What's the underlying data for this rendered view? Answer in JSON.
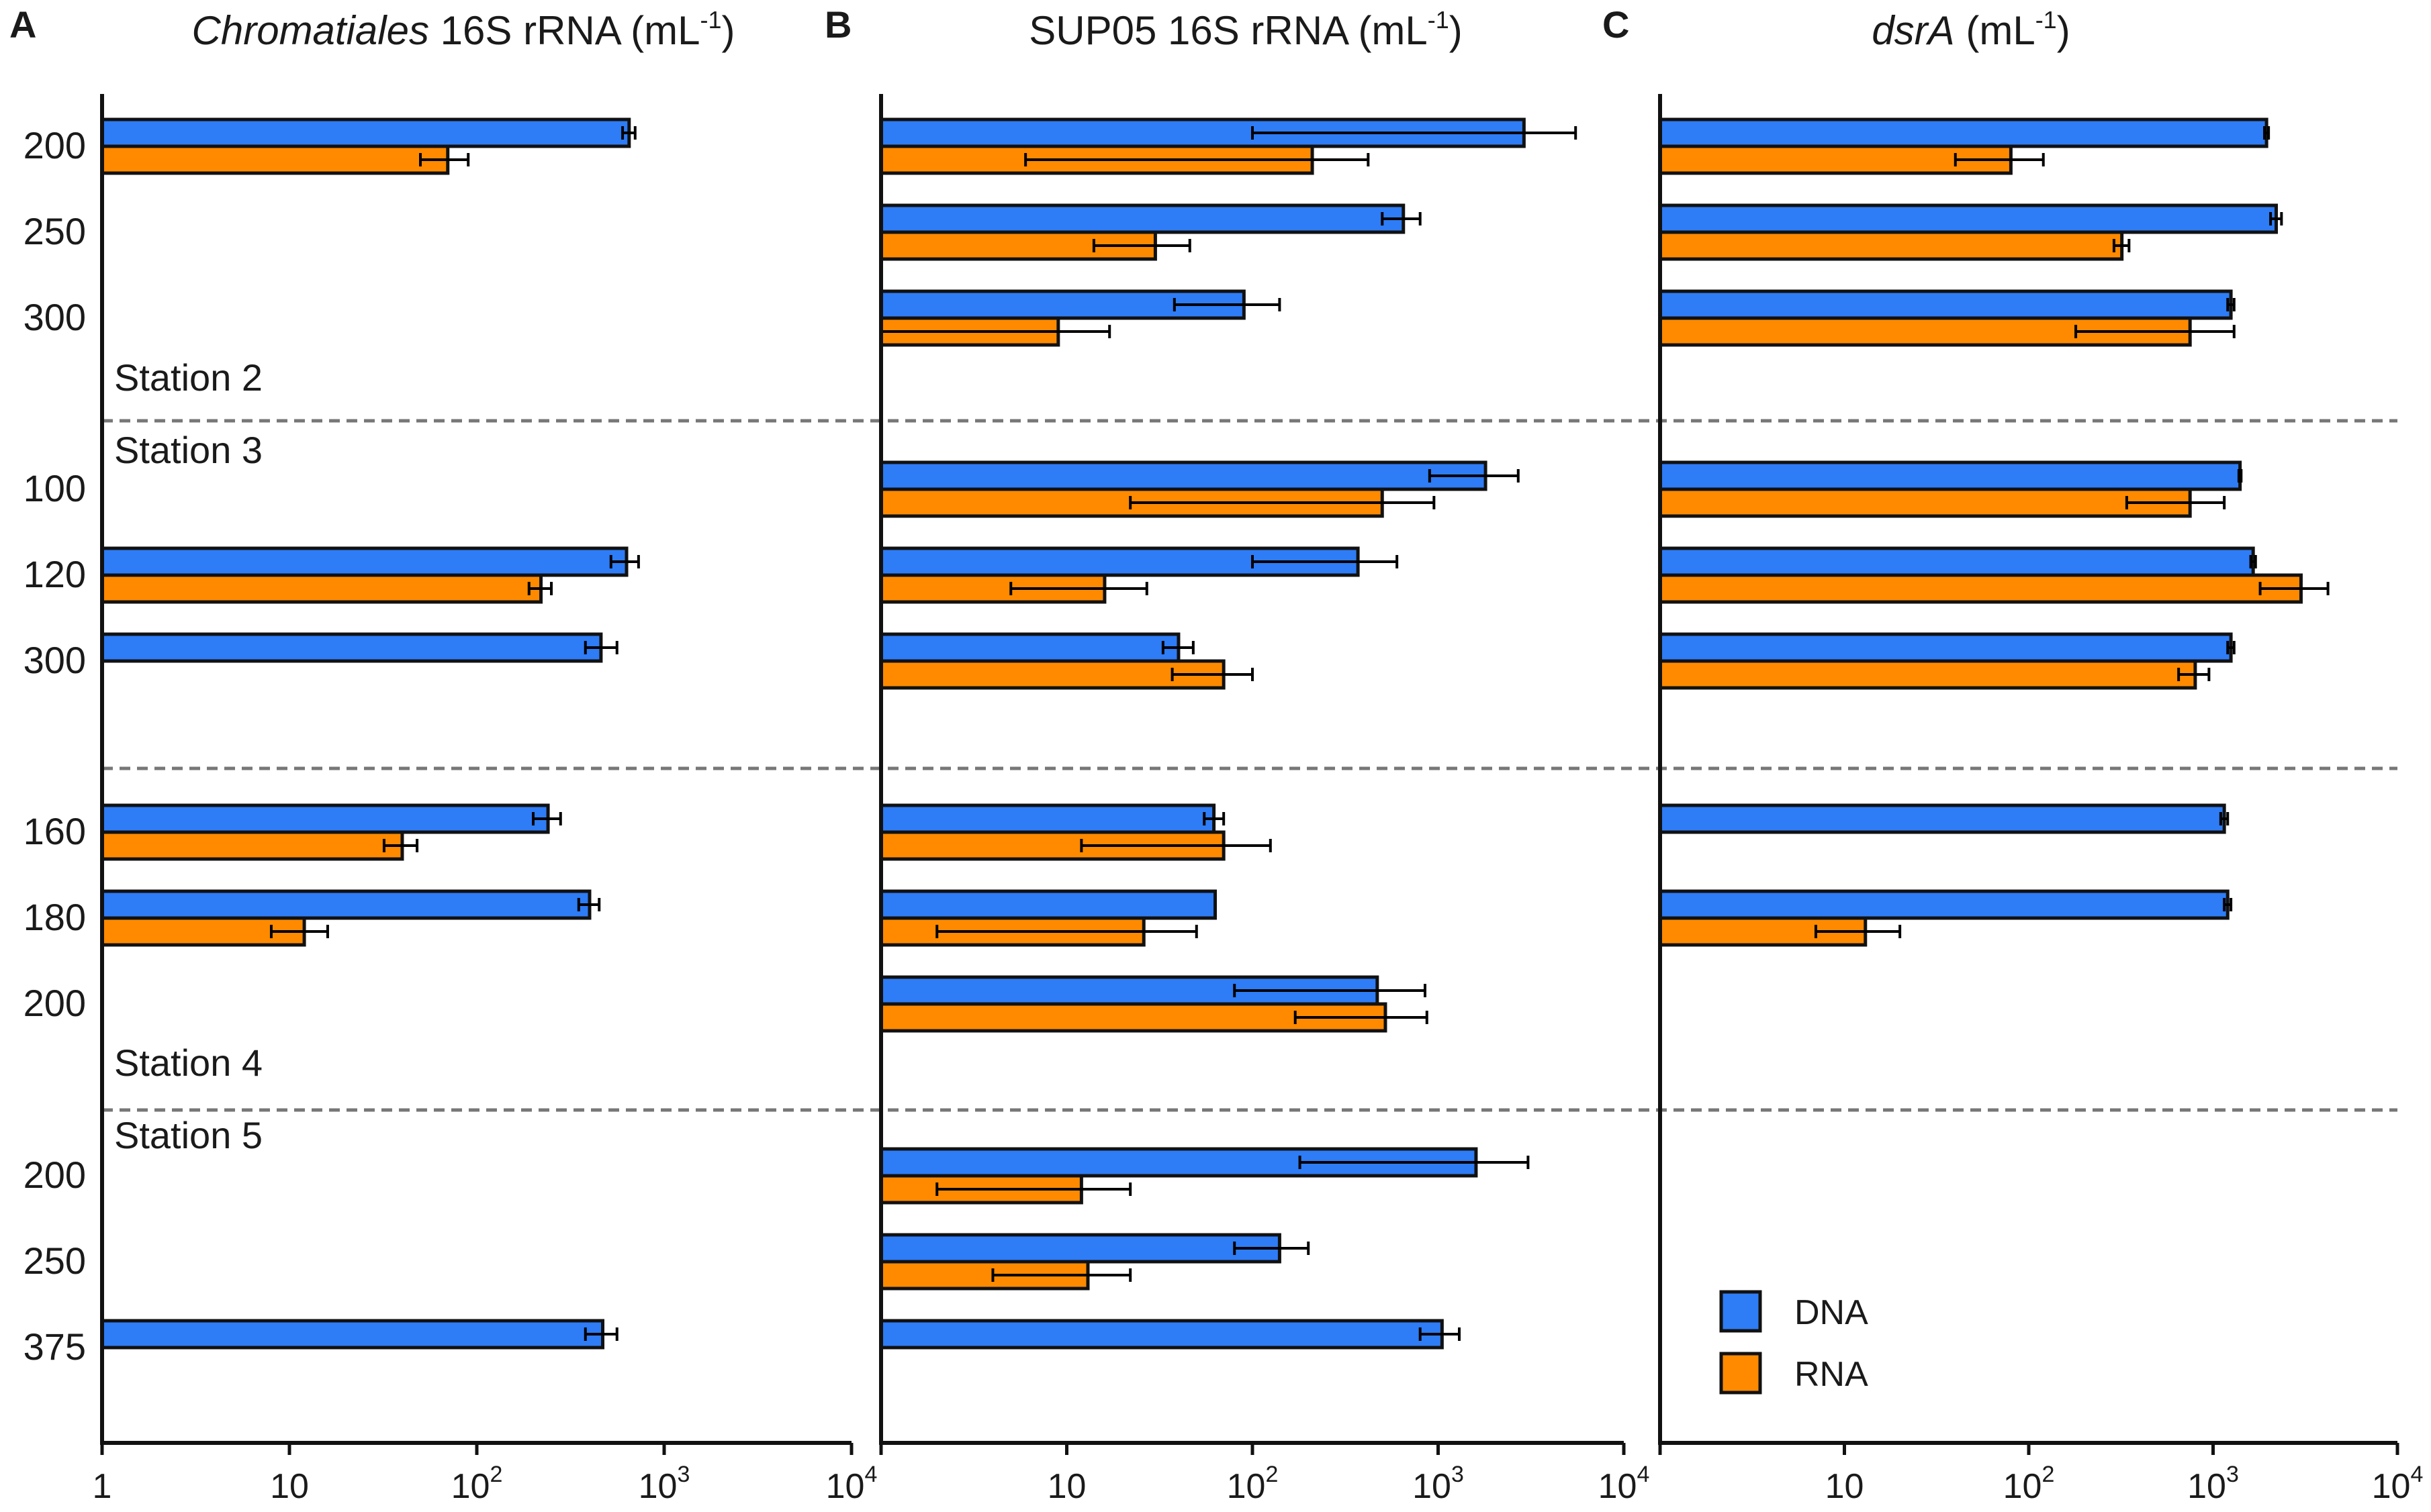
{
  "chart_data": {
    "type": "bar",
    "orientation": "horizontal",
    "xscale": "log",
    "xlim": [
      1,
      10000
    ],
    "x_tick_labels": [
      {
        "v": 1,
        "base": "1",
        "exp": ""
      },
      {
        "v": 10,
        "base": "10",
        "exp": ""
      },
      {
        "v": 100,
        "base": "10",
        "exp": "2"
      },
      {
        "v": 1000,
        "base": "10",
        "exp": "3"
      },
      {
        "v": 10000,
        "base": "10",
        "exp": "4"
      }
    ],
    "colors": {
      "DNA": "#2e7cf6",
      "RNA": "#ff8a00",
      "axis": "#111111",
      "divider": "#777777"
    },
    "legend": {
      "position": "bottom-right",
      "entries": [
        {
          "key": "DNA",
          "label": "DNA"
        },
        {
          "key": "RNA",
          "label": "RNA"
        }
      ]
    },
    "station_labels": [
      "Station 2",
      "Station 3",
      "Station 4",
      "Station 5"
    ],
    "groups": [
      {
        "station": "Station 2",
        "depth": "200"
      },
      {
        "station": "Station 2",
        "depth": "250"
      },
      {
        "station": "Station 2",
        "depth": "300"
      },
      {
        "station": "Station 3",
        "depth": "100"
      },
      {
        "station": "Station 3",
        "depth": "120"
      },
      {
        "station": "Station 3",
        "depth": "300"
      },
      {
        "station": "Station 4",
        "depth": "160"
      },
      {
        "station": "Station 4",
        "depth": "180"
      },
      {
        "station": "Station 4",
        "depth": "200"
      },
      {
        "station": "Station 5",
        "depth": "200"
      },
      {
        "station": "Station 5",
        "depth": "250"
      },
      {
        "station": "Station 5",
        "depth": "375"
      }
    ],
    "panels": [
      {
        "letter": "A",
        "title_italic": "Chromatiales",
        "title_rest": " 16S rRNA (mL",
        "title_sup": "-1",
        "title_end": ")",
        "bars": [
          {
            "group": 0,
            "series": "DNA",
            "value": 650,
            "err": [
              600,
              700
            ]
          },
          {
            "group": 0,
            "series": "RNA",
            "value": 70,
            "err": [
              50,
              90
            ]
          },
          {
            "group": 4,
            "series": "DNA",
            "value": 630,
            "err": [
              520,
              730
            ]
          },
          {
            "group": 4,
            "series": "RNA",
            "value": 220,
            "err": [
              190,
              250
            ]
          },
          {
            "group": 5,
            "series": "DNA",
            "value": 460,
            "err": [
              380,
              560
            ]
          },
          {
            "group": 6,
            "series": "DNA",
            "value": 240,
            "err": [
              200,
              280
            ]
          },
          {
            "group": 6,
            "series": "RNA",
            "value": 40,
            "err": [
              32,
              48
            ]
          },
          {
            "group": 7,
            "series": "DNA",
            "value": 400,
            "err": [
              350,
              450
            ]
          },
          {
            "group": 7,
            "series": "RNA",
            "value": 12,
            "err": [
              8,
              16
            ]
          },
          {
            "group": 11,
            "series": "DNA",
            "value": 470,
            "err": [
              380,
              560
            ]
          }
        ]
      },
      {
        "letter": "B",
        "title_italic": "",
        "title_rest": "SUP05 16S rRNA (mL",
        "title_sup": "-1",
        "title_end": ")",
        "bars": [
          {
            "group": 0,
            "series": "DNA",
            "value": 2900,
            "err": [
              100,
              5500
            ]
          },
          {
            "group": 0,
            "series": "RNA",
            "value": 210,
            "err": [
              6,
              420
            ]
          },
          {
            "group": 1,
            "series": "DNA",
            "value": 650,
            "err": [
              500,
              800
            ]
          },
          {
            "group": 1,
            "series": "RNA",
            "value": 30,
            "err": [
              14,
              46
            ]
          },
          {
            "group": 2,
            "series": "DNA",
            "value": 90,
            "err": [
              38,
              140
            ]
          },
          {
            "group": 2,
            "series": "RNA",
            "value": 9,
            "err": [
              1,
              17
            ]
          },
          {
            "group": 3,
            "series": "DNA",
            "value": 1800,
            "err": [
              900,
              2700
            ]
          },
          {
            "group": 3,
            "series": "RNA",
            "value": 500,
            "err": [
              22,
              950
            ]
          },
          {
            "group": 4,
            "series": "DNA",
            "value": 370,
            "err": [
              100,
              600
            ]
          },
          {
            "group": 4,
            "series": "RNA",
            "value": 16,
            "err": [
              5,
              27
            ]
          },
          {
            "group": 5,
            "series": "DNA",
            "value": 40,
            "err": [
              33,
              48
            ]
          },
          {
            "group": 5,
            "series": "RNA",
            "value": 70,
            "err": [
              37,
              100
            ]
          },
          {
            "group": 6,
            "series": "DNA",
            "value": 62,
            "err": [
              55,
              70
            ]
          },
          {
            "group": 6,
            "series": "RNA",
            "value": 70,
            "err": [
              12,
              125
            ]
          },
          {
            "group": 7,
            "series": "DNA",
            "value": 63,
            "err": null
          },
          {
            "group": 7,
            "series": "RNA",
            "value": 26,
            "err": [
              2,
              50
            ]
          },
          {
            "group": 8,
            "series": "DNA",
            "value": 470,
            "err": [
              80,
              850
            ]
          },
          {
            "group": 8,
            "series": "RNA",
            "value": 520,
            "err": [
              170,
              870
            ]
          },
          {
            "group": 9,
            "series": "DNA",
            "value": 1600,
            "err": [
              180,
              3050
            ]
          },
          {
            "group": 9,
            "series": "RNA",
            "value": 12,
            "err": [
              2,
              22
            ]
          },
          {
            "group": 10,
            "series": "DNA",
            "value": 140,
            "err": [
              80,
              200
            ]
          },
          {
            "group": 10,
            "series": "RNA",
            "value": 13,
            "err": [
              4,
              22
            ]
          },
          {
            "group": 11,
            "series": "DNA",
            "value": 1050,
            "err": [
              800,
              1300
            ]
          }
        ]
      },
      {
        "letter": "C",
        "title_italic": "dsrA",
        "title_rest": " (mL",
        "title_sup": "-1",
        "title_end": ")",
        "bars": [
          {
            "group": 0,
            "series": "DNA",
            "value": 1950,
            "err": [
              1900,
              2000
            ]
          },
          {
            "group": 0,
            "series": "RNA",
            "value": 80,
            "err": [
              40,
              120
            ]
          },
          {
            "group": 1,
            "series": "DNA",
            "value": 2200,
            "err": [
              2050,
              2350
            ]
          },
          {
            "group": 1,
            "series": "RNA",
            "value": 320,
            "err": [
              290,
              350
            ]
          },
          {
            "group": 2,
            "series": "DNA",
            "value": 1250,
            "err": [
              1200,
              1300
            ]
          },
          {
            "group": 2,
            "series": "RNA",
            "value": 750,
            "err": [
              180,
              1300
            ]
          },
          {
            "group": 3,
            "series": "DNA",
            "value": 1400,
            "err": [
              1380,
              1420
            ]
          },
          {
            "group": 3,
            "series": "RNA",
            "value": 750,
            "err": [
              340,
              1150
            ]
          },
          {
            "group": 4,
            "series": "DNA",
            "value": 1650,
            "err": [
              1600,
              1700
            ]
          },
          {
            "group": 4,
            "series": "RNA",
            "value": 3000,
            "err": [
              1800,
              4200
            ]
          },
          {
            "group": 5,
            "series": "DNA",
            "value": 1250,
            "err": [
              1200,
              1300
            ]
          },
          {
            "group": 5,
            "series": "RNA",
            "value": 800,
            "err": [
              650,
              950
            ]
          },
          {
            "group": 6,
            "series": "DNA",
            "value": 1150,
            "err": [
              1100,
              1200
            ]
          },
          {
            "group": 7,
            "series": "DNA",
            "value": 1200,
            "err": [
              1150,
              1250
            ]
          },
          {
            "group": 7,
            "series": "RNA",
            "value": 13,
            "err": [
              7,
              20
            ]
          }
        ]
      }
    ]
  }
}
